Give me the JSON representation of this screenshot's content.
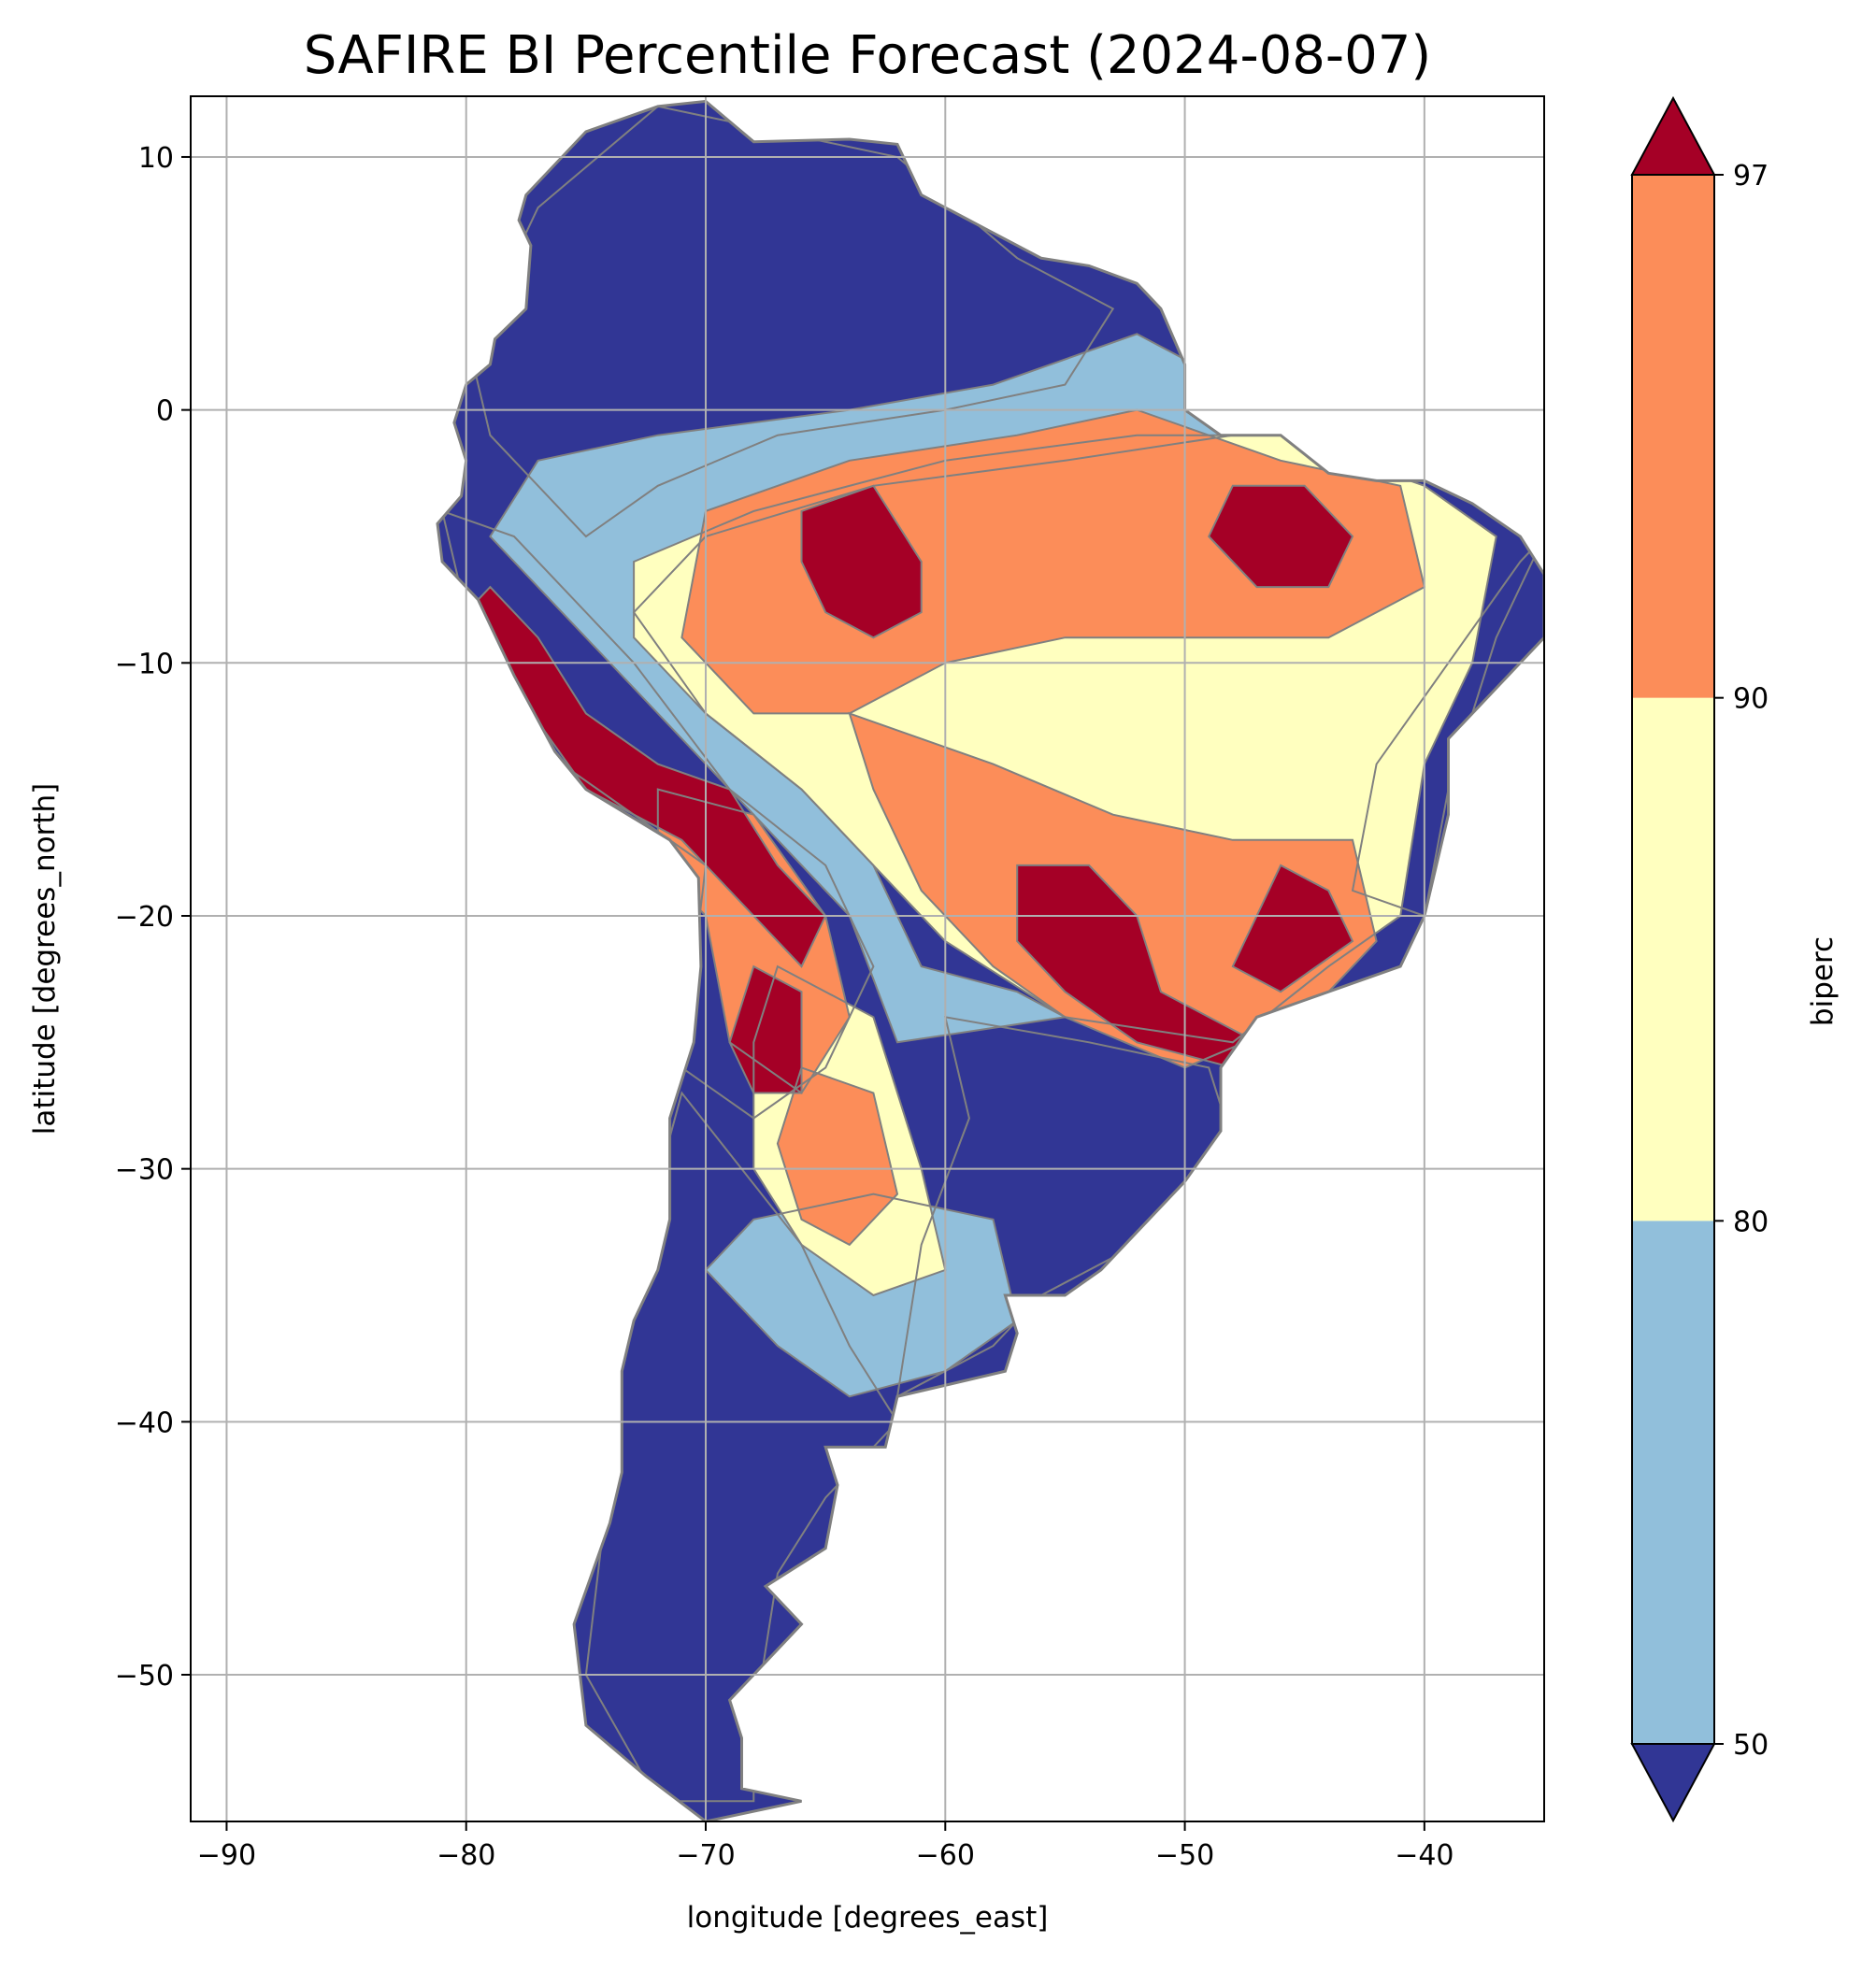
{
  "chart_data": {
    "type": "heatmap",
    "title": "SAFIRE BI Percentile Forecast (2024-08-07)",
    "xlabel": "longitude [degrees_east]",
    "ylabel": "latitude [degrees_north]",
    "xlim": [
      -91.5,
      -35
    ],
    "ylim": [
      -55.8,
      12.4
    ],
    "x_ticks": [
      -90,
      -80,
      -70,
      -60,
      -50,
      -40
    ],
    "x_tick_labels": [
      "−90",
      "−80",
      "−70",
      "−60",
      "−50",
      "−40"
    ],
    "y_ticks": [
      10,
      0,
      -10,
      -20,
      -30,
      -40,
      -50
    ],
    "y_tick_labels": [
      "10",
      "0",
      "−10",
      "−20",
      "−30",
      "−40",
      "−50"
    ],
    "grid": true,
    "colorbar": {
      "label": "biperc",
      "extend": "both",
      "boundaries": [
        50,
        80,
        90,
        97
      ],
      "tick_labels": [
        "50",
        "80",
        "90",
        "97"
      ],
      "colors": {
        "below_50": "#313695",
        "50_80": "#91bfdb",
        "80_90": "#ffffbf",
        "90_97": "#fc8d59",
        "above_97": "#a50026"
      }
    },
    "border_color": "#808080",
    "regions": [
      {
        "name": "northern-andes-amazonas",
        "class": "below_50",
        "polygon": [
          [
            -77,
            8
          ],
          [
            -72,
            12
          ],
          [
            -62,
            10
          ],
          [
            -57,
            6
          ],
          [
            -53,
            4
          ],
          [
            -55,
            1
          ],
          [
            -60,
            0
          ],
          [
            -67,
            -1
          ],
          [
            -72,
            -3
          ],
          [
            -75,
            -5
          ],
          [
            -79,
            -1
          ],
          [
            -80,
            3
          ],
          [
            -78,
            6
          ]
        ]
      },
      {
        "name": "central-pacific-andes",
        "class": "below_50",
        "polygon": [
          [
            -81,
            -4
          ],
          [
            -78,
            -5
          ],
          [
            -73,
            -10
          ],
          [
            -69,
            -15
          ],
          [
            -65,
            -18
          ],
          [
            -63,
            -22
          ],
          [
            -65,
            -26
          ],
          [
            -68,
            -28
          ],
          [
            -71,
            -26
          ],
          [
            -70,
            -18
          ],
          [
            -76,
            -14
          ],
          [
            -80,
            -8
          ]
        ]
      },
      {
        "name": "southern-cone",
        "class": "below_50",
        "polygon": [
          [
            -71,
            -27
          ],
          [
            -66,
            -33
          ],
          [
            -64,
            -37
          ],
          [
            -62,
            -40
          ],
          [
            -65,
            -43
          ],
          [
            -67,
            -46
          ],
          [
            -68,
            -52
          ],
          [
            -68,
            -55
          ],
          [
            -72,
            -55
          ],
          [
            -75,
            -50
          ],
          [
            -74,
            -42
          ],
          [
            -73,
            -34
          ]
        ]
      },
      {
        "name": "pampas-uruguay-south-brazil",
        "class": "below_50",
        "polygon": [
          [
            -60,
            -24
          ],
          [
            -54,
            -25
          ],
          [
            -49,
            -26
          ],
          [
            -48,
            -29
          ],
          [
            -52,
            -33
          ],
          [
            -56,
            -35
          ],
          [
            -58,
            -37
          ],
          [
            -62,
            -39
          ],
          [
            -61,
            -33
          ],
          [
            -59,
            -28
          ]
        ]
      },
      {
        "name": "atlantic-east-coast",
        "class": "below_50",
        "polygon": [
          [
            -35,
            -5
          ],
          [
            -37,
            -9
          ],
          [
            -39,
            -15
          ],
          [
            -40,
            -20
          ],
          [
            -43,
            -19
          ],
          [
            -42,
            -14
          ],
          [
            -39,
            -10
          ],
          [
            -36,
            -6
          ]
        ]
      },
      {
        "name": "amazon-edge",
        "class": "50_80",
        "polygon": [
          [
            -77,
            -2
          ],
          [
            -72,
            -1
          ],
          [
            -64,
            0
          ],
          [
            -58,
            1
          ],
          [
            -52,
            3
          ],
          [
            -50,
            2
          ],
          [
            -48,
            -1
          ],
          [
            -55,
            -2
          ],
          [
            -63,
            -3
          ],
          [
            -70,
            -5
          ],
          [
            -73,
            -8
          ],
          [
            -70,
            -12
          ],
          [
            -66,
            -15
          ],
          [
            -63,
            -18
          ],
          [
            -61,
            -22
          ],
          [
            -57,
            -23
          ],
          [
            -55,
            -24
          ],
          [
            -62,
            -25
          ],
          [
            -64,
            -20
          ],
          [
            -68,
            -16
          ],
          [
            -72,
            -12
          ],
          [
            -76,
            -8
          ],
          [
            -79,
            -5
          ]
        ]
      },
      {
        "name": "argentina-center",
        "class": "50_80",
        "polygon": [
          [
            -68,
            -32
          ],
          [
            -63,
            -31
          ],
          [
            -58,
            -32
          ],
          [
            -57,
            -36
          ],
          [
            -60,
            -38
          ],
          [
            -64,
            -39
          ],
          [
            -67,
            -37
          ],
          [
            -70,
            -34
          ]
        ]
      },
      {
        "name": "brazil-interior-mid",
        "class": "80_90",
        "polygon": [
          [
            -73,
            -6
          ],
          [
            -68,
            -4
          ],
          [
            -60,
            -2
          ],
          [
            -52,
            -1
          ],
          [
            -46,
            -1
          ],
          [
            -40,
            -3
          ],
          [
            -37,
            -5
          ],
          [
            -38,
            -10
          ],
          [
            -40,
            -14
          ],
          [
            -41,
            -20
          ],
          [
            -44,
            -22
          ],
          [
            -48,
            -25
          ],
          [
            -55,
            -24
          ],
          [
            -60,
            -21
          ],
          [
            -63,
            -18
          ],
          [
            -66,
            -15
          ],
          [
            -70,
            -12
          ],
          [
            -73,
            -9
          ]
        ]
      },
      {
        "name": "argentina-north-interior",
        "class": "80_90",
        "polygon": [
          [
            -67,
            -22
          ],
          [
            -63,
            -24
          ],
          [
            -61,
            -30
          ],
          [
            -60,
            -34
          ],
          [
            -63,
            -35
          ],
          [
            -66,
            -33
          ],
          [
            -68,
            -30
          ],
          [
            -68,
            -25
          ]
        ]
      },
      {
        "name": "brazil-orange-north",
        "class": "90_97",
        "polygon": [
          [
            -70,
            -4
          ],
          [
            -64,
            -2
          ],
          [
            -57,
            -1
          ],
          [
            -52,
            0
          ],
          [
            -46,
            -2
          ],
          [
            -41,
            -3
          ],
          [
            -40,
            -7
          ],
          [
            -44,
            -9
          ],
          [
            -50,
            -9
          ],
          [
            -55,
            -9
          ],
          [
            -60,
            -10
          ],
          [
            -64,
            -12
          ],
          [
            -68,
            -12
          ],
          [
            -71,
            -9
          ]
        ]
      },
      {
        "name": "brazil-orange-south",
        "class": "90_97",
        "polygon": [
          [
            -64,
            -12
          ],
          [
            -58,
            -14
          ],
          [
            -53,
            -16
          ],
          [
            -48,
            -17
          ],
          [
            -43,
            -17
          ],
          [
            -42,
            -21
          ],
          [
            -45,
            -24
          ],
          [
            -50,
            -26
          ],
          [
            -55,
            -24
          ],
          [
            -58,
            -22
          ],
          [
            -61,
            -19
          ],
          [
            -63,
            -15
          ]
        ]
      },
      {
        "name": "bolivia-andes-orange",
        "class": "90_97",
        "polygon": [
          [
            -72,
            -15
          ],
          [
            -68,
            -16
          ],
          [
            -65,
            -20
          ],
          [
            -64,
            -24
          ],
          [
            -66,
            -27
          ],
          [
            -69,
            -25
          ],
          [
            -70,
            -20
          ],
          [
            -72,
            -18
          ]
        ]
      },
      {
        "name": "argentina-chaco-orange",
        "class": "90_97",
        "polygon": [
          [
            -66,
            -26
          ],
          [
            -63,
            -27
          ],
          [
            -62,
            -31
          ],
          [
            -64,
            -33
          ],
          [
            -66,
            -32
          ],
          [
            -67,
            -29
          ]
        ]
      },
      {
        "name": "peru-andes-red",
        "class": "above_97",
        "polygon": [
          [
            -79,
            -7
          ],
          [
            -77,
            -9
          ],
          [
            -75,
            -12
          ],
          [
            -72,
            -14
          ],
          [
            -69,
            -15
          ],
          [
            -67,
            -18
          ],
          [
            -65,
            -20
          ],
          [
            -66,
            -22
          ],
          [
            -68,
            -20
          ],
          [
            -71,
            -17
          ],
          [
            -75,
            -15
          ],
          [
            -78,
            -11
          ],
          [
            -80,
            -8
          ]
        ]
      },
      {
        "name": "amazonas-red",
        "class": "above_97",
        "polygon": [
          [
            -66,
            -4
          ],
          [
            -63,
            -3
          ],
          [
            -61,
            -6
          ],
          [
            -61,
            -8
          ],
          [
            -63,
            -9
          ],
          [
            -65,
            -8
          ],
          [
            -66,
            -6
          ]
        ]
      },
      {
        "name": "maranhao-red",
        "class": "above_97",
        "polygon": [
          [
            -48,
            -3
          ],
          [
            -45,
            -3
          ],
          [
            -43,
            -5
          ],
          [
            -44,
            -7
          ],
          [
            -47,
            -7
          ],
          [
            -49,
            -5
          ]
        ]
      },
      {
        "name": "mato-grosso-do-sul-red",
        "class": "above_97",
        "polygon": [
          [
            -57,
            -18
          ],
          [
            -54,
            -18
          ],
          [
            -52,
            -20
          ],
          [
            -51,
            -23
          ],
          [
            -49,
            -24
          ],
          [
            -47,
            -25
          ],
          [
            -48,
            -26
          ],
          [
            -52,
            -25
          ],
          [
            -55,
            -23
          ],
          [
            -57,
            -21
          ]
        ]
      },
      {
        "name": "minas-red",
        "class": "above_97",
        "polygon": [
          [
            -46,
            -18
          ],
          [
            -44,
            -19
          ],
          [
            -43,
            -21
          ],
          [
            -46,
            -23
          ],
          [
            -48,
            -22
          ],
          [
            -47,
            -20
          ]
        ]
      },
      {
        "name": "chaco-red",
        "class": "above_97",
        "polygon": [
          [
            -68,
            -22
          ],
          [
            -66,
            -23
          ],
          [
            -66,
            -27
          ],
          [
            -68,
            -27
          ],
          [
            -69,
            -25
          ]
        ]
      }
    ],
    "land_outline": [
      [
        -77.5,
        8.5
      ],
      [
        -75,
        11
      ],
      [
        -72,
        12
      ],
      [
        -70,
        12.2
      ],
      [
        -68,
        10.6
      ],
      [
        -64,
        10.7
      ],
      [
        -62,
        10.5
      ],
      [
        -61,
        8.5
      ],
      [
        -58,
        7
      ],
      [
        -56,
        6
      ],
      [
        -54,
        5.7
      ],
      [
        -52,
        5
      ],
      [
        -51,
        4
      ],
      [
        -50,
        1.8
      ],
      [
        -50,
        0
      ],
      [
        -48.5,
        -1
      ],
      [
        -46,
        -1
      ],
      [
        -44,
        -2.5
      ],
      [
        -42,
        -2.8
      ],
      [
        -40,
        -2.8
      ],
      [
        -38,
        -3.7
      ],
      [
        -36,
        -5
      ],
      [
        -35,
        -6.5
      ],
      [
        -35,
        -9
      ],
      [
        -37,
        -11
      ],
      [
        -39,
        -13
      ],
      [
        -39,
        -16
      ],
      [
        -40,
        -20
      ],
      [
        -41,
        -22
      ],
      [
        -44,
        -23
      ],
      [
        -47,
        -24
      ],
      [
        -48.5,
        -26
      ],
      [
        -48.5,
        -28.5
      ],
      [
        -50,
        -30.5
      ],
      [
        -52,
        -32.5
      ],
      [
        -53.5,
        -34
      ],
      [
        -55,
        -35
      ],
      [
        -57.5,
        -35
      ],
      [
        -57,
        -36.5
      ],
      [
        -57.5,
        -38
      ],
      [
        -62,
        -39
      ],
      [
        -62.5,
        -41
      ],
      [
        -65,
        -41
      ],
      [
        -64.5,
        -42.5
      ],
      [
        -65,
        -45
      ],
      [
        -67.5,
        -46.5
      ],
      [
        -66,
        -48
      ],
      [
        -68,
        -50
      ],
      [
        -69,
        -51
      ],
      [
        -68.5,
        -52.5
      ],
      [
        -68.5,
        -54.5
      ],
      [
        -66,
        -55
      ],
      [
        -70,
        -55.8
      ],
      [
        -72.5,
        -54
      ],
      [
        -75,
        -52
      ],
      [
        -75.5,
        -48
      ],
      [
        -74,
        -44
      ],
      [
        -73.5,
        -42
      ],
      [
        -73.5,
        -38
      ],
      [
        -73,
        -36
      ],
      [
        -72,
        -34
      ],
      [
        -71.5,
        -32
      ],
      [
        -71.5,
        -28
      ],
      [
        -70.5,
        -25
      ],
      [
        -70.2,
        -22
      ],
      [
        -70.3,
        -18.5
      ],
      [
        -71.5,
        -17
      ],
      [
        -75,
        -15
      ],
      [
        -76.3,
        -13.5
      ],
      [
        -78,
        -10.5
      ],
      [
        -79.5,
        -7.5
      ],
      [
        -81,
        -6
      ],
      [
        -81.2,
        -4.5
      ],
      [
        -80.2,
        -3.4
      ],
      [
        -80,
        -2
      ],
      [
        -80.5,
        -0.5
      ],
      [
        -80,
        1
      ],
      [
        -79,
        1.8
      ],
      [
        -78.8,
        2.8
      ],
      [
        -77.5,
        4
      ],
      [
        -77.3,
        6.5
      ],
      [
        -77.8,
        7.5
      ]
    ]
  }
}
